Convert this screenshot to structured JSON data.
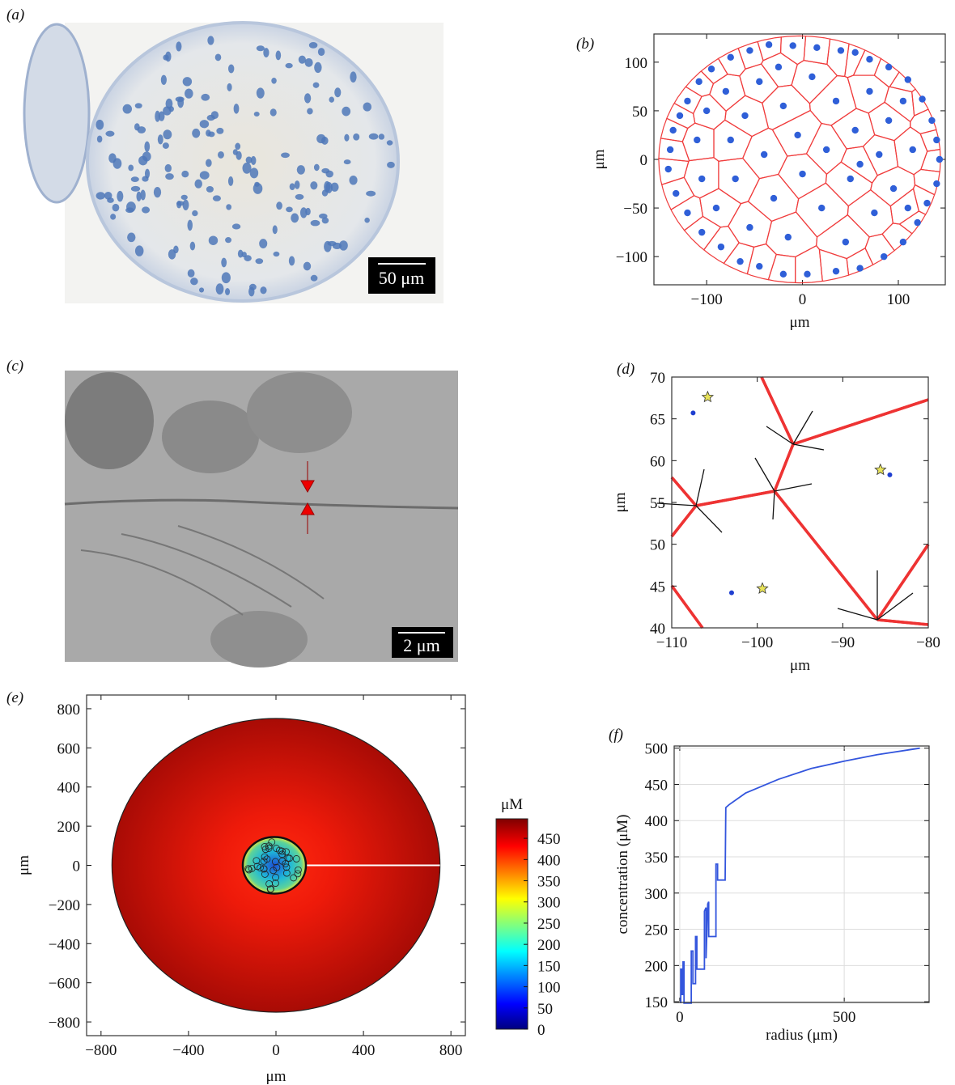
{
  "panels": {
    "labels": [
      "(a)",
      "(b)",
      "(c)",
      "(d)",
      "(e)",
      "(f)"
    ],
    "scale_bars": [
      "50 μm",
      "2 μm"
    ]
  },
  "chart_data": [
    {
      "type": "scatter",
      "xlabel": "μm",
      "ylabel": "μm",
      "xlim": [
        -155,
        149
      ],
      "ylim": [
        -129,
        129
      ],
      "xticks": [
        {
          "value": -100,
          "label": "−100"
        },
        0,
        100
      ],
      "yticks": [
        {
          "value": -100,
          "label": "−100"
        },
        {
          "value": -50,
          "label": "−50"
        },
        0,
        50,
        100
      ],
      "series": [
        {
          "color": "#2f5fd8",
          "x": [
            -140,
            -138,
            -135,
            -128,
            -120,
            -108,
            -95,
            -75,
            -55,
            -35,
            -10,
            15,
            40,
            55,
            70,
            90,
            110,
            125,
            135,
            140,
            143,
            140,
            130,
            120,
            105,
            85,
            60,
            35,
            5,
            -20,
            -45,
            -65,
            -85,
            -105,
            -120,
            -132,
            -110,
            -105,
            -100,
            -90,
            -80,
            -75,
            -70,
            -60,
            -55,
            -45,
            -40,
            -30,
            -20,
            -15,
            -5,
            0,
            10,
            20,
            25,
            35,
            45,
            50,
            55,
            70,
            75,
            80,
            90,
            95,
            105,
            110,
            115,
            -25,
            60
          ],
          "y": [
            -10,
            10,
            30,
            45,
            60,
            80,
            93,
            105,
            112,
            118,
            117,
            115,
            112,
            110,
            103,
            95,
            82,
            62,
            40,
            20,
            0,
            -25,
            -45,
            -65,
            -85,
            -100,
            -112,
            -115,
            -118,
            -118,
            -110,
            -105,
            -90,
            -75,
            -55,
            -35,
            20,
            -20,
            50,
            -50,
            70,
            20,
            -20,
            45,
            -70,
            80,
            5,
            -40,
            55,
            -80,
            25,
            -15,
            85,
            -50,
            10,
            60,
            -85,
            -20,
            30,
            70,
            -55,
            5,
            40,
            -30,
            60,
            -50,
            10,
            95,
            -5
          ]
        }
      ]
    },
    {
      "type": "scatter",
      "xlabel": "μm",
      "ylabel": "μm",
      "xlim": [
        -110,
        -80
      ],
      "ylim": [
        40,
        70
      ],
      "xticks": [
        {
          "value": -110,
          "label": "−110"
        },
        {
          "value": -100,
          "label": "−100"
        },
        {
          "value": -90,
          "label": "−90"
        },
        {
          "value": -80,
          "label": "−80"
        }
      ],
      "yticks": [
        40,
        45,
        50,
        55,
        60,
        65,
        70
      ],
      "series": [
        {
          "color": "#1f3fd0",
          "marker": "dot",
          "x": [
            -107.5,
            -84.5,
            -103
          ],
          "y": [
            65.7,
            58.3,
            44.2
          ]
        },
        {
          "color": "#e8e35a",
          "marker": "star",
          "x": [
            -105.8,
            -85.6,
            -99.4
          ],
          "y": [
            67.6,
            58.9,
            44.7
          ]
        }
      ]
    },
    {
      "type": "heatmap",
      "xlabel": "μm",
      "ylabel": "μm",
      "xlim": [
        -866,
        866
      ],
      "ylim": [
        -870,
        870
      ],
      "xticks": [
        {
          "value": -800,
          "label": "−800"
        },
        {
          "value": -400,
          "label": "−400"
        },
        0,
        400,
        800
      ],
      "yticks": [
        {
          "value": -800,
          "label": "−800"
        },
        {
          "value": -600,
          "label": "−600"
        },
        {
          "value": -400,
          "label": "−400"
        },
        {
          "value": -200,
          "label": "−200"
        },
        0,
        200,
        400,
        600,
        800
      ],
      "domain_radius": 750,
      "colorbar": {
        "label": "μM",
        "lim": [
          0,
          496
        ],
        "ticks": [
          0,
          50,
          100,
          150,
          200,
          250,
          300,
          350,
          400,
          450
        ],
        "colormap": "jet"
      }
    },
    {
      "type": "line",
      "xlabel": "radius (μm)",
      "ylabel": "concentration (μM)",
      "xlim": [
        -17,
        758
      ],
      "ylim": [
        149,
        503
      ],
      "xticks": [
        0,
        500
      ],
      "yticks": [
        150,
        200,
        250,
        300,
        350,
        400,
        450,
        500
      ],
      "grid": true,
      "x": [
        3,
        3,
        7,
        7,
        10,
        10,
        13,
        13,
        35,
        35,
        40,
        40,
        48,
        48,
        52,
        52,
        75,
        75,
        80,
        80,
        85,
        88,
        88,
        110,
        110,
        115,
        115,
        138,
        140,
        150,
        200,
        300,
        400,
        500,
        600,
        730
      ],
      "series": [
        {
          "color": "#3355dd",
          "values": [
            148,
            195,
            195,
            160,
            160,
            205,
            205,
            148,
            148,
            220,
            220,
            175,
            175,
            240,
            240,
            195,
            195,
            275,
            280,
            210,
            285,
            288,
            240,
            240,
            340,
            340,
            318,
            318,
            418,
            422,
            438,
            457,
            472,
            482,
            491,
            500
          ]
        }
      ]
    }
  ]
}
